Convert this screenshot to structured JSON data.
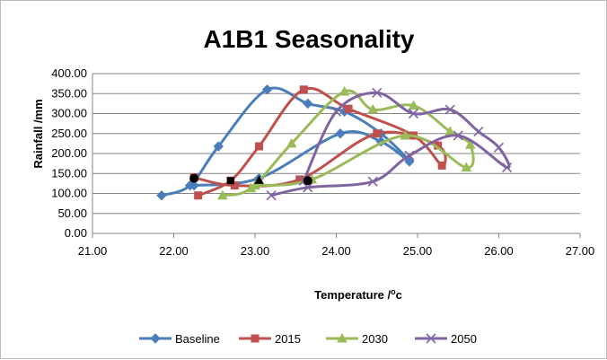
{
  "chart_data": {
    "type": "scatter",
    "title": "A1B1 Seasonality",
    "xlabel": "Temperature /",
    "xlabel_sup": "o",
    "xlabel_tail": "c",
    "ylabel": "Rainfall /mm",
    "xlim": [
      21,
      27
    ],
    "ylim": [
      0,
      400
    ],
    "x_ticks": [
      "21.00",
      "22.00",
      "23.00",
      "24.00",
      "25.00",
      "26.00",
      "27.00"
    ],
    "x_tick_values": [
      21,
      22,
      23,
      24,
      25,
      26,
      27
    ],
    "y_ticks": [
      "0.00",
      "50.00",
      "100.00",
      "150.00",
      "200.00",
      "250.00",
      "300.00",
      "350.00",
      "400.00"
    ],
    "y_tick_values": [
      0,
      50,
      100,
      150,
      200,
      250,
      300,
      350,
      400
    ],
    "grid": "horizontal",
    "legend_position": "bottom",
    "series": [
      {
        "name": "Baseline",
        "color": "#4a7ebb",
        "marker": "diamond",
        "points": [
          [
            21.85,
            95
          ],
          [
            22.2,
            120
          ],
          [
            22.55,
            218
          ],
          [
            23.15,
            360
          ],
          [
            23.65,
            325
          ],
          [
            24.1,
            305
          ],
          [
            24.55,
            250
          ],
          [
            24.9,
            180
          ],
          [
            24.55,
            230
          ],
          [
            24.05,
            250
          ],
          [
            23.05,
            138
          ],
          [
            22.25,
            120
          ]
        ]
      },
      {
        "name": "2015",
        "color": "#c0504d",
        "marker": "square",
        "points": [
          [
            22.3,
            95
          ],
          [
            22.7,
            132
          ],
          [
            23.05,
            218
          ],
          [
            23.6,
            360
          ],
          [
            24.15,
            312
          ],
          [
            24.95,
            245
          ],
          [
            25.3,
            170
          ],
          [
            25.25,
            220
          ],
          [
            24.5,
            250
          ],
          [
            23.55,
            135
          ],
          [
            22.75,
            120
          ],
          [
            22.25,
            140
          ]
        ]
      },
      {
        "name": "2030",
        "color": "#9bbb59",
        "marker": "triangle",
        "points": [
          [
            22.6,
            95
          ],
          [
            22.95,
            113
          ],
          [
            23.45,
            225
          ],
          [
            24.1,
            355
          ],
          [
            24.45,
            310
          ],
          [
            24.95,
            320
          ],
          [
            25.4,
            255
          ],
          [
            25.65,
            222
          ],
          [
            25.6,
            165
          ],
          [
            24.85,
            245
          ],
          [
            23.7,
            135
          ],
          [
            23.0,
            120
          ]
        ]
      },
      {
        "name": "2050",
        "color": "#8064a2",
        "marker": "x",
        "points": [
          [
            23.2,
            95
          ],
          [
            23.65,
            115
          ],
          [
            24.45,
            130
          ],
          [
            24.9,
            195
          ],
          [
            25.5,
            245
          ],
          [
            26.1,
            165
          ],
          [
            26.0,
            215
          ],
          [
            25.75,
            255
          ],
          [
            25.4,
            310
          ],
          [
            24.95,
            300
          ],
          [
            24.5,
            352
          ],
          [
            24.0,
            305
          ],
          [
            23.6,
            132
          ]
        ]
      }
    ],
    "extra_markers": [
      {
        "shape": "circle",
        "color": "#000000",
        "points": [
          [
            22.25,
            138
          ],
          [
            23.65,
            132
          ]
        ]
      },
      {
        "shape": "square",
        "color": "#000000",
        "points": [
          [
            22.7,
            132
          ]
        ]
      },
      {
        "shape": "triangle",
        "color": "#000000",
        "points": [
          [
            23.05,
            133
          ]
        ]
      }
    ]
  }
}
